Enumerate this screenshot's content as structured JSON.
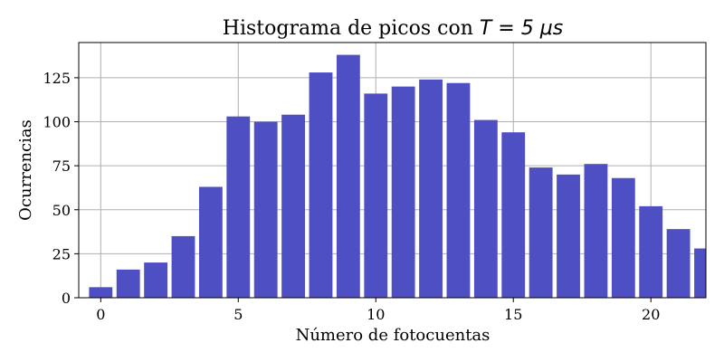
{
  "chart_data": {
    "type": "bar",
    "title_text": "Histograma de picos con ",
    "title_math": "T = 5 μs",
    "xlabel": "Número de fotocuentas",
    "ylabel": "Ocurrencias",
    "x": [
      0,
      1,
      2,
      3,
      4,
      5,
      6,
      7,
      8,
      9,
      10,
      11,
      12,
      13,
      14,
      15,
      16,
      17,
      18,
      19,
      20,
      21,
      22
    ],
    "values": [
      6,
      16,
      20,
      35,
      63,
      103,
      100,
      104,
      128,
      138,
      116,
      120,
      124,
      122,
      101,
      94,
      74,
      70,
      76,
      68,
      52,
      39,
      28
    ],
    "xlim": [
      -0.8,
      22
    ],
    "ylim": [
      0,
      145
    ],
    "xticks": [
      0,
      5,
      10,
      15,
      20
    ],
    "yticks": [
      0,
      25,
      50,
      75,
      100,
      125
    ],
    "grid": true,
    "bar_color": "#4f4fc4"
  }
}
